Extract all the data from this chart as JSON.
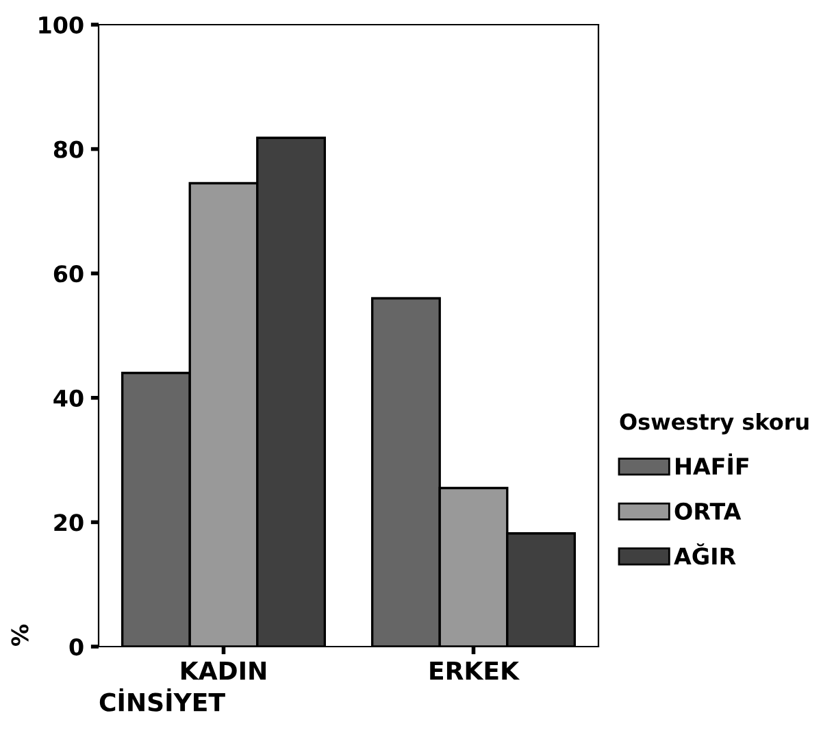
{
  "chart_data": {
    "type": "bar",
    "xlabel": "CİNSİYET",
    "ylabel": "%",
    "legend_title": "Oswestry skoru",
    "categories": [
      "KADIN",
      "ERKEK"
    ],
    "series": [
      {
        "name": "HAFİF",
        "color": "#666666",
        "values": [
          44,
          56
        ]
      },
      {
        "name": "ORTA",
        "color": "#999999",
        "values": [
          74.5,
          25.5
        ]
      },
      {
        "name": "AĞIR",
        "color": "#404040",
        "values": [
          81.8,
          18.2
        ]
      }
    ],
    "ylim": [
      0,
      100
    ],
    "yticks": [
      0,
      20,
      40,
      60,
      80,
      100
    ],
    "grid": false,
    "legend": "right"
  }
}
